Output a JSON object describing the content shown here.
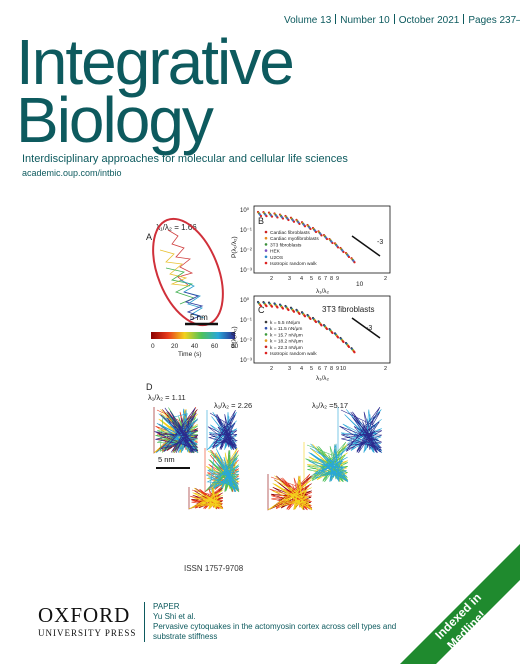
{
  "journal": {
    "volume": "Volume 13",
    "number": "Number 10",
    "date": "October 2021",
    "pages": "Pages 237–258",
    "title_line1": "Integrative",
    "title_line2": "Biology",
    "subtitle": "Interdisciplinary approaches for molecular and cellular life sciences",
    "url": "academic.oup.com/intbio",
    "issn": "ISSN 1757-9708"
  },
  "figure": {
    "panel_a": {
      "label": "A",
      "ratio": "λ₁/λ₂ = 1.66",
      "scale": "5 nm",
      "colorbar_ticks": [
        "0",
        "20",
        "40",
        "60",
        "80"
      ],
      "colorbar_label": "Time (s)"
    },
    "panel_b": {
      "label": "B",
      "ylabel": "P(λ₁/λ₂)",
      "xlabel": "λ₁/λ₂",
      "slope": "-3",
      "yticks": [
        "10⁰",
        "10⁻¹",
        "10⁻²",
        "10⁻³"
      ],
      "xticks": [
        "2",
        "3",
        "4",
        "5",
        "6",
        "7",
        "8",
        "9",
        "10",
        "2"
      ],
      "x_major": "10",
      "legend": [
        "Cardiac fibroblasts",
        "Cardiac myofibroblasts",
        "3T3 fibroblasts",
        "HEK",
        "U2OS",
        "Isotropic random walk"
      ]
    },
    "panel_c": {
      "label": "C",
      "title": "3T3 fibroblasts",
      "ylabel": "P(λ₁/λ₂)",
      "xlabel": "λ₁/λ₂",
      "slope": "-3",
      "yticks": [
        "10⁰",
        "10⁻¹",
        "10⁻²",
        "10⁻³"
      ],
      "xticks": [
        "2",
        "3",
        "4",
        "5",
        "6",
        "7",
        "8",
        "9",
        "10",
        "2"
      ],
      "legend": [
        "k = 5.5 nN/μm",
        "k = 11.5 nN/μm",
        "k = 15.7 nN/μm",
        "k = 18.2 nN/μm",
        "k = 22.3 nN/μm",
        "Isotropic random walk"
      ]
    },
    "panel_d": {
      "label": "D",
      "ratios": [
        "λ₁/λ₂ = 1.11",
        "λ₁/λ₂ = 2.26",
        "λ₁/λ₂ =5.17"
      ],
      "scale": "5 nm"
    }
  },
  "publisher": {
    "name": "OXFORD",
    "sub": "UNIVERSITY PRESS"
  },
  "paper": {
    "label": "PAPER",
    "authors": "Yu Shi et al.",
    "title": "Pervasive cytoquakes in the actomyosin cortex across cell types and substrate stiffness"
  },
  "banner": {
    "line1": "Indexed in",
    "line2": "Medline!"
  },
  "colors": {
    "brand": "#0d5a5e",
    "banner": "#1f8a2e"
  }
}
